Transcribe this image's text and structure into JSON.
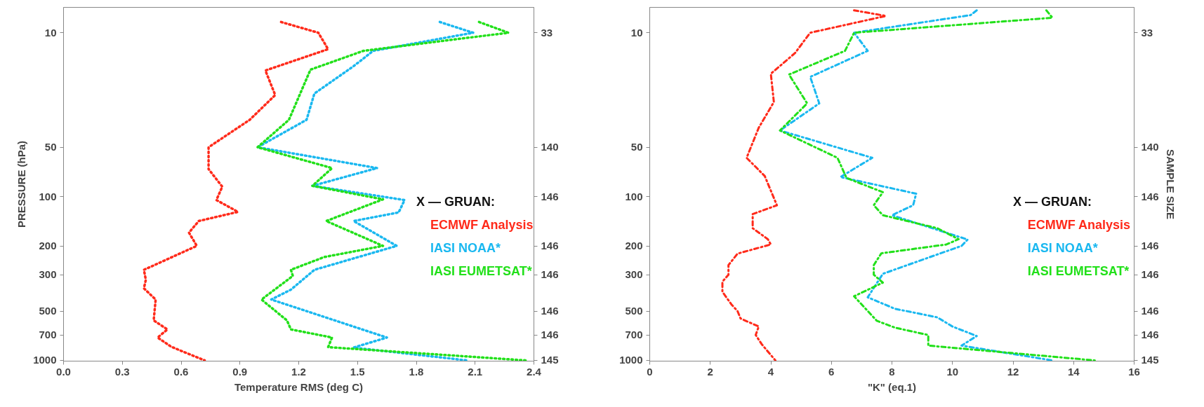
{
  "chart_data": [
    {
      "type": "line",
      "xlabel": "Temperature RMS (deg C)",
      "ylabel": "PRESSURE (hPa)",
      "legend_title": "X — GRUAN:",
      "legend": "right",
      "line_style": "dotted",
      "log": "y",
      "xlim": [
        0,
        2.4
      ],
      "xticks": [
        {
          "value": 0,
          "label": "0.0"
        },
        0.3,
        0.6,
        0.9,
        1.2,
        1.5,
        1.8,
        2.1,
        2.4
      ],
      "ylim": [
        1010,
        7
      ],
      "yticks": [
        10,
        50,
        100,
        200,
        300,
        500,
        700,
        1000
      ],
      "annotations": [
        "33",
        "140",
        "146",
        "146",
        "146",
        "146",
        "146",
        "145"
      ],
      "series": [
        {
          "name": "ECMWF Analysis",
          "color": "#ff2a1a",
          "x": [
            1.11,
            1.3,
            1.35,
            1.03,
            1.08,
            0.95,
            0.74,
            0.74,
            0.81,
            0.78,
            0.89,
            0.69,
            0.64,
            0.68,
            0.41,
            0.42,
            0.41,
            0.47,
            0.46,
            0.53,
            0.48,
            0.55,
            0.72
          ],
          "values": [
            8.6,
            10,
            12.6,
            17,
            24,
            34,
            50,
            68,
            87,
            105,
            124,
            141,
            166,
            200,
            280,
            322,
            363,
            425,
            570,
            647,
            725,
            826,
            1000
          ]
        },
        {
          "name": "IASI NOAA*",
          "color": "#1ab8f0",
          "x": [
            1.92,
            2.09,
            1.58,
            1.48,
            1.28,
            1.24,
            0.99,
            1.6,
            1.27,
            1.74,
            1.71,
            1.48,
            1.7,
            1.28,
            1.16,
            1.06,
            1.65,
            1.48,
            2.06
          ],
          "values": [
            8.6,
            10,
            12.9,
            16,
            23.5,
            34,
            50,
            67,
            86,
            105,
            125,
            141,
            200,
            280,
            370,
            425,
            725,
            835,
            1000
          ]
        },
        {
          "name": "IASI EUMETSAT*",
          "color": "#22e01a",
          "x": [
            2.12,
            2.27,
            1.53,
            1.26,
            1.15,
            0.99,
            1.37,
            1.27,
            1.63,
            1.34,
            1.63,
            1.33,
            1.16,
            1.17,
            1.01,
            1.14,
            1.16,
            1.37,
            1.35,
            2.36
          ],
          "values": [
            8.6,
            10,
            12.9,
            16.8,
            34,
            50,
            67,
            86,
            104,
            141,
            200,
            234,
            280,
            305,
            425,
            570,
            647,
            725,
            830,
            1000
          ]
        }
      ]
    },
    {
      "type": "line",
      "xlabel": "\"K\" (eq.1)",
      "y2label": "SAMPLE SIZE",
      "legend_title": "X — GRUAN:",
      "legend": "right",
      "line_style": "dashdot",
      "log": "y",
      "xlim": [
        0,
        16
      ],
      "xticks": [
        0,
        2,
        4,
        6,
        8,
        10,
        12,
        14,
        16
      ],
      "ylim": [
        1010,
        7
      ],
      "yticks": [
        10,
        50,
        100,
        200,
        300,
        500,
        700,
        1000
      ],
      "annotations": [
        "33",
        "140",
        "146",
        "146",
        "146",
        "146",
        "146",
        "145"
      ],
      "series": [
        {
          "name": "ECMWF Analysis",
          "color": "#ff2a1a",
          "x": [
            6.75,
            7.8,
            5.3,
            4.8,
            4.0,
            4.1,
            3.6,
            3.2,
            3.8,
            4.2,
            3.4,
            3.4,
            3.9,
            4.0,
            2.9,
            2.6,
            2.6,
            2.4,
            2.4,
            2.7,
            2.9,
            3.0,
            3.6,
            3.5,
            3.7,
            4.15
          ],
          "values": [
            7.3,
            7.9,
            10,
            13.3,
            17.8,
            26.5,
            38,
            58,
            75,
            113,
            128,
            156,
            182,
            196,
            223,
            262,
            300,
            331,
            381,
            456,
            500,
            555,
            621,
            700,
            797,
            1000
          ]
        },
        {
          "name": "IASI NOAA*",
          "color": "#1ab8f0",
          "x": [
            10.8,
            10.6,
            6.75,
            7.2,
            5.3,
            5.6,
            4.3,
            7.35,
            6.3,
            8.8,
            8.7,
            8.0,
            10.5,
            10.3,
            9.4,
            7.7,
            7.2,
            8.1,
            9.5,
            10.0,
            10.8,
            10.3,
            13.3
          ],
          "values": [
            7.3,
            7.8,
            10,
            12.9,
            18.6,
            27,
            39.5,
            58,
            76,
            96,
            113,
            130,
            183,
            200,
            229,
            296,
            412,
            484,
            546,
            621,
            710,
            812,
            1000
          ]
        },
        {
          "name": "IASI EUMETSAT*",
          "color": "#22e01a",
          "x": [
            13.1,
            13.3,
            6.75,
            6.45,
            4.6,
            5.2,
            4.3,
            6.2,
            6.5,
            7.7,
            7.4,
            7.7,
            9.5,
            10.2,
            9.8,
            7.65,
            7.4,
            7.4,
            7.7,
            6.75,
            7.5,
            8.1,
            9.2,
            9.2,
            14.7
          ],
          "values": [
            7.3,
            8.1,
            10,
            12.9,
            18,
            27,
            39.5,
            58,
            77,
            94,
            113,
            130,
            156,
            182,
            196,
            222,
            262,
            300,
            335,
            406,
            573,
            631,
            700,
            812,
            1000
          ]
        }
      ]
    }
  ]
}
